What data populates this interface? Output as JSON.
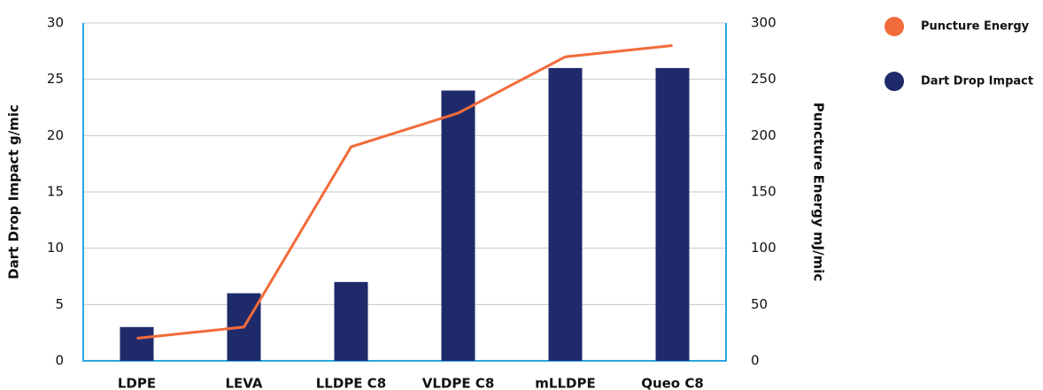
{
  "chart_data": {
    "type": "combo",
    "categories": [
      "LDPE",
      "LEVA",
      "LLDPE C8",
      "VLDPE C8",
      "mLLDPE",
      "Queo C8"
    ],
    "series": [
      {
        "name": "Dart Drop Impact",
        "type": "bar",
        "color": "#1f2a6b",
        "values": [
          3,
          6,
          7,
          24,
          26,
          26
        ]
      },
      {
        "name": "Puncture Energy",
        "type": "line",
        "axis": "y2",
        "color": "#f26b3a",
        "values": [
          20,
          30,
          190,
          220,
          270,
          280
        ]
      }
    ],
    "ylabel": "Dart Drop Impact g/mic",
    "y2label": "Puncture Energy mJ/mic",
    "ylim": [
      0,
      30
    ],
    "yticks": [
      0,
      5,
      10,
      15,
      20,
      25,
      30
    ],
    "y2lim": [
      0,
      300
    ],
    "y2ticks": [
      0,
      50,
      100,
      150,
      200,
      250,
      300
    ],
    "grid": true,
    "legend": "right"
  }
}
